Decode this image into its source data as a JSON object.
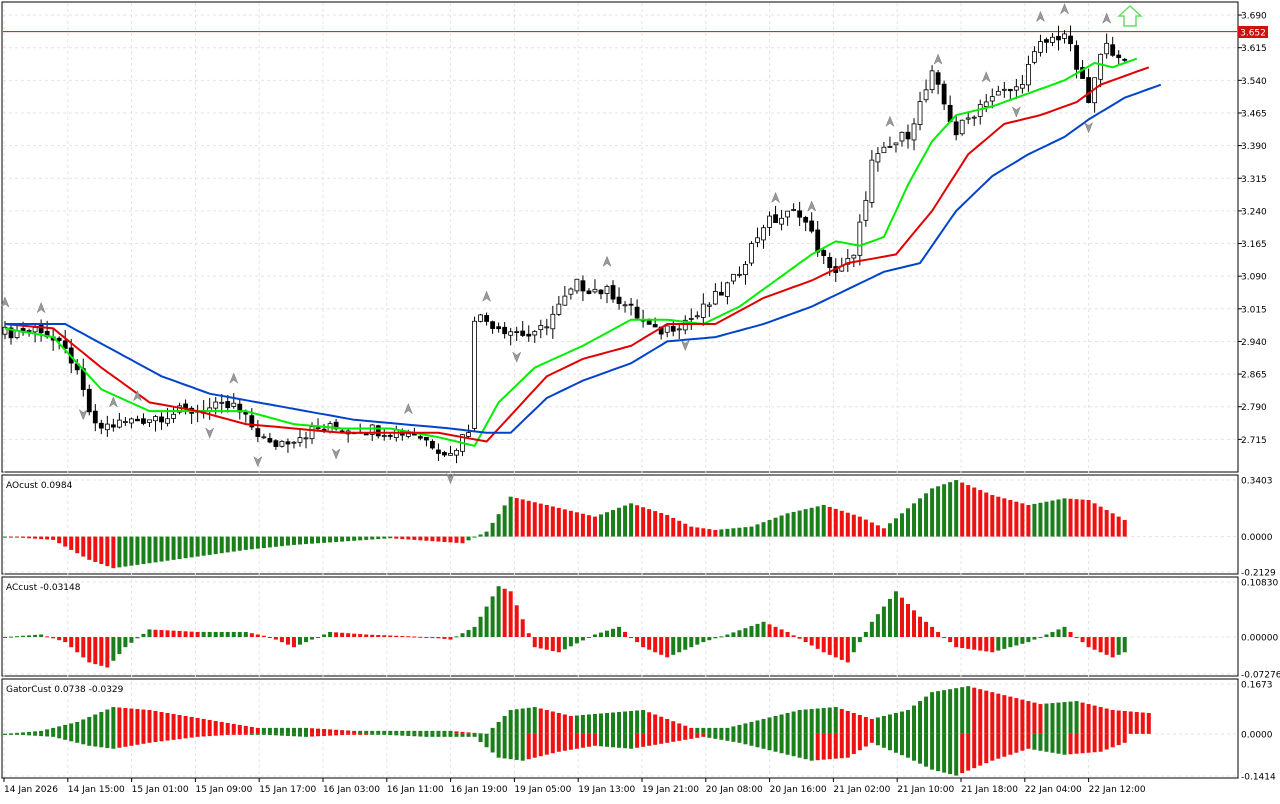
{
  "colors": {
    "background": "#ffffff",
    "grid": "#e4e4e4",
    "frame": "#000000",
    "bull_candle": "#ffffff",
    "bear_candle": "#000000",
    "ma_fast": "#00ee00",
    "ma_mid": "#e00000",
    "ma_slow": "#0044cc",
    "hist_up": "#1a7f1a",
    "hist_down": "#ee1111",
    "price_line": "#cc1111",
    "fractal": "#999999",
    "arrow": "#66dd66"
  },
  "main_chart": {
    "current_price_label": "3.652",
    "current_price": 3.652,
    "ylim": [
      2.64,
      3.72
    ],
    "y_ticks": [
      "3.690",
      "3.615",
      "3.540",
      "3.465",
      "3.390",
      "3.315",
      "3.240",
      "3.165",
      "3.090",
      "3.015",
      "2.940",
      "2.865",
      "2.790",
      "2.715"
    ]
  },
  "x_axis": {
    "labels": [
      "14 Jan 2026",
      "14 Jan 15:00",
      "15 Jan 01:00",
      "15 Jan 09:00",
      "15 Jan 17:00",
      "16 Jan 03:00",
      "16 Jan 11:00",
      "16 Jan 19:00",
      "19 Jan 05:00",
      "19 Jan 13:00",
      "19 Jan 21:00",
      "20 Jan 08:00",
      "20 Jan 16:00",
      "21 Jan 02:00",
      "21 Jan 10:00",
      "21 Jan 18:00",
      "22 Jan 04:00",
      "22 Jan 12:00"
    ]
  },
  "ao_panel": {
    "title": "AOcust 0.0984",
    "y_ticks": [
      "0.3403",
      "0.0000",
      "-0.2129"
    ],
    "ylim": [
      -0.2129,
      0.3403
    ]
  },
  "ac_panel": {
    "title": "ACcust -0.03148",
    "y_ticks": [
      "0.10830",
      "0.00000",
      "-0.07276"
    ],
    "ylim": [
      -0.07276,
      0.1083
    ]
  },
  "gator_panel": {
    "title": "GatorCust 0.0738 -0.0329",
    "y_ticks": [
      "0.1673",
      "0.0000",
      "-0.1414"
    ],
    "ylim": [
      -0.1414,
      0.1673
    ]
  },
  "chart_data": {
    "type": "candlestick",
    "price_anchors": [
      {
        "bar": 0,
        "close": 2.96
      },
      {
        "bar": 6,
        "close": 2.97
      },
      {
        "bar": 11,
        "close": 2.9
      },
      {
        "bar": 15,
        "close": 2.74
      },
      {
        "bar": 22,
        "close": 2.76
      },
      {
        "bar": 30,
        "close": 2.78
      },
      {
        "bar": 38,
        "close": 2.79
      },
      {
        "bar": 44,
        "close": 2.7
      },
      {
        "bar": 52,
        "close": 2.74
      },
      {
        "bar": 60,
        "close": 2.74
      },
      {
        "bar": 68,
        "close": 2.73
      },
      {
        "bar": 74,
        "close": 2.68
      },
      {
        "bar": 77,
        "close": 2.74
      },
      {
        "bar": 78,
        "close": 3.0
      },
      {
        "bar": 83,
        "close": 2.97
      },
      {
        "bar": 88,
        "close": 2.95
      },
      {
        "bar": 95,
        "close": 3.07
      },
      {
        "bar": 101,
        "close": 3.05
      },
      {
        "bar": 108,
        "close": 2.96
      },
      {
        "bar": 115,
        "close": 3.0
      },
      {
        "bar": 121,
        "close": 3.08
      },
      {
        "bar": 126,
        "close": 3.21
      },
      {
        "bar": 132,
        "close": 3.24
      },
      {
        "bar": 137,
        "close": 3.1
      },
      {
        "bar": 141,
        "close": 3.13
      },
      {
        "bar": 144,
        "close": 3.35
      },
      {
        "bar": 150,
        "close": 3.42
      },
      {
        "bar": 154,
        "close": 3.55
      },
      {
        "bar": 158,
        "close": 3.42
      },
      {
        "bar": 163,
        "close": 3.5
      },
      {
        "bar": 168,
        "close": 3.52
      },
      {
        "bar": 172,
        "close": 3.62
      },
      {
        "bar": 176,
        "close": 3.65
      },
      {
        "bar": 180,
        "close": 3.49
      },
      {
        "bar": 183,
        "close": 3.64
      },
      {
        "bar": 185,
        "close": 3.58
      }
    ],
    "ma_series": [
      {
        "period": "fast",
        "values": [
          [
            0,
            2.97
          ],
          [
            8,
            2.95
          ],
          [
            16,
            2.83
          ],
          [
            24,
            2.78
          ],
          [
            32,
            2.78
          ],
          [
            40,
            2.78
          ],
          [
            48,
            2.75
          ],
          [
            56,
            2.74
          ],
          [
            64,
            2.74
          ],
          [
            72,
            2.72
          ],
          [
            78,
            2.7
          ],
          [
            82,
            2.8
          ],
          [
            88,
            2.88
          ],
          [
            96,
            2.93
          ],
          [
            104,
            2.99
          ],
          [
            110,
            2.99
          ],
          [
            116,
            2.98
          ],
          [
            122,
            3.02
          ],
          [
            128,
            3.08
          ],
          [
            134,
            3.14
          ],
          [
            138,
            3.17
          ],
          [
            142,
            3.16
          ],
          [
            146,
            3.18
          ],
          [
            150,
            3.3
          ],
          [
            154,
            3.4
          ],
          [
            158,
            3.46
          ],
          [
            164,
            3.48
          ],
          [
            170,
            3.51
          ],
          [
            176,
            3.54
          ],
          [
            181,
            3.58
          ],
          [
            184,
            3.57
          ],
          [
            188,
            3.59
          ]
        ]
      },
      {
        "period": "mid",
        "values": [
          [
            0,
            2.98
          ],
          [
            8,
            2.97
          ],
          [
            16,
            2.88
          ],
          [
            24,
            2.8
          ],
          [
            32,
            2.78
          ],
          [
            40,
            2.75
          ],
          [
            48,
            2.74
          ],
          [
            56,
            2.73
          ],
          [
            64,
            2.73
          ],
          [
            72,
            2.73
          ],
          [
            80,
            2.71
          ],
          [
            84,
            2.77
          ],
          [
            90,
            2.86
          ],
          [
            96,
            2.9
          ],
          [
            104,
            2.93
          ],
          [
            110,
            2.98
          ],
          [
            118,
            2.98
          ],
          [
            126,
            3.04
          ],
          [
            134,
            3.08
          ],
          [
            140,
            3.12
          ],
          [
            144,
            3.13
          ],
          [
            148,
            3.14
          ],
          [
            154,
            3.24
          ],
          [
            160,
            3.37
          ],
          [
            166,
            3.44
          ],
          [
            172,
            3.46
          ],
          [
            178,
            3.49
          ],
          [
            182,
            3.53
          ],
          [
            186,
            3.55
          ],
          [
            190,
            3.57
          ]
        ]
      },
      {
        "period": "slow",
        "values": [
          [
            0,
            2.98
          ],
          [
            10,
            2.98
          ],
          [
            18,
            2.92
          ],
          [
            26,
            2.86
          ],
          [
            34,
            2.82
          ],
          [
            42,
            2.8
          ],
          [
            50,
            2.78
          ],
          [
            58,
            2.76
          ],
          [
            66,
            2.75
          ],
          [
            74,
            2.74
          ],
          [
            80,
            2.73
          ],
          [
            84,
            2.73
          ],
          [
            90,
            2.81
          ],
          [
            96,
            2.85
          ],
          [
            104,
            2.89
          ],
          [
            110,
            2.94
          ],
          [
            118,
            2.95
          ],
          [
            126,
            2.98
          ],
          [
            134,
            3.02
          ],
          [
            140,
            3.06
          ],
          [
            146,
            3.1
          ],
          [
            152,
            3.12
          ],
          [
            158,
            3.24
          ],
          [
            164,
            3.32
          ],
          [
            170,
            3.37
          ],
          [
            176,
            3.41
          ],
          [
            180,
            3.45
          ],
          [
            186,
            3.5
          ],
          [
            192,
            3.53
          ]
        ]
      }
    ],
    "ao_values": [
      [
        0,
        0.0
      ],
      [
        8,
        -0.02
      ],
      [
        14,
        -0.14
      ],
      [
        18,
        -0.19
      ],
      [
        24,
        -0.16
      ],
      [
        32,
        -0.12
      ],
      [
        40,
        -0.08
      ],
      [
        48,
        -0.05
      ],
      [
        56,
        -0.03
      ],
      [
        64,
        -0.01
      ],
      [
        72,
        -0.03
      ],
      [
        76,
        -0.04
      ],
      [
        80,
        0.03
      ],
      [
        84,
        0.24
      ],
      [
        90,
        0.19
      ],
      [
        98,
        0.12
      ],
      [
        104,
        0.2
      ],
      [
        110,
        0.13
      ],
      [
        114,
        0.06
      ],
      [
        118,
        0.04
      ],
      [
        124,
        0.06
      ],
      [
        130,
        0.14
      ],
      [
        136,
        0.19
      ],
      [
        142,
        0.12
      ],
      [
        146,
        0.05
      ],
      [
        150,
        0.17
      ],
      [
        154,
        0.29
      ],
      [
        158,
        0.34
      ],
      [
        164,
        0.25
      ],
      [
        170,
        0.19
      ],
      [
        176,
        0.23
      ],
      [
        180,
        0.22
      ],
      [
        186,
        0.1
      ]
    ],
    "ac_values": [
      [
        0,
        0.0
      ],
      [
        6,
        0.005
      ],
      [
        10,
        -0.01
      ],
      [
        14,
        -0.05
      ],
      [
        17,
        -0.06
      ],
      [
        20,
        -0.02
      ],
      [
        24,
        0.015
      ],
      [
        32,
        0.01
      ],
      [
        40,
        0.01
      ],
      [
        44,
        0.0
      ],
      [
        48,
        -0.02
      ],
      [
        54,
        0.01
      ],
      [
        60,
        0.005
      ],
      [
        70,
        0.0
      ],
      [
        74,
        -0.005
      ],
      [
        78,
        0.02
      ],
      [
        82,
        0.1
      ],
      [
        84,
        0.09
      ],
      [
        88,
        -0.02
      ],
      [
        92,
        -0.03
      ],
      [
        98,
        0.005
      ],
      [
        102,
        0.02
      ],
      [
        106,
        -0.02
      ],
      [
        110,
        -0.04
      ],
      [
        116,
        -0.01
      ],
      [
        120,
        0.005
      ],
      [
        126,
        0.03
      ],
      [
        130,
        0.01
      ],
      [
        136,
        -0.03
      ],
      [
        140,
        -0.05
      ],
      [
        144,
        0.03
      ],
      [
        148,
        0.09
      ],
      [
        152,
        0.04
      ],
      [
        158,
        -0.02
      ],
      [
        164,
        -0.03
      ],
      [
        170,
        -0.01
      ],
      [
        176,
        0.02
      ],
      [
        180,
        -0.02
      ],
      [
        184,
        -0.04
      ],
      [
        186,
        -0.03
      ]
    ],
    "gator_upper": [
      [
        0,
        0.0
      ],
      [
        6,
        0.01
      ],
      [
        12,
        0.04
      ],
      [
        18,
        0.09
      ],
      [
        24,
        0.08
      ],
      [
        30,
        0.06
      ],
      [
        36,
        0.04
      ],
      [
        42,
        0.02
      ],
      [
        50,
        0.02
      ],
      [
        58,
        0.01
      ],
      [
        66,
        0.01
      ],
      [
        74,
        0.01
      ],
      [
        80,
        0.0
      ],
      [
        84,
        0.08
      ],
      [
        88,
        0.09
      ],
      [
        94,
        0.06
      ],
      [
        100,
        0.07
      ],
      [
        106,
        0.08
      ],
      [
        110,
        0.05
      ],
      [
        114,
        0.02
      ],
      [
        120,
        0.02
      ],
      [
        126,
        0.05
      ],
      [
        132,
        0.08
      ],
      [
        138,
        0.09
      ],
      [
        144,
        0.05
      ],
      [
        150,
        0.08
      ],
      [
        154,
        0.14
      ],
      [
        160,
        0.16
      ],
      [
        166,
        0.13
      ],
      [
        172,
        0.1
      ],
      [
        178,
        0.11
      ],
      [
        184,
        0.08
      ],
      [
        190,
        0.07
      ]
    ],
    "gator_lower": [
      [
        0,
        0.0
      ],
      [
        8,
        -0.01
      ],
      [
        14,
        -0.04
      ],
      [
        18,
        -0.05
      ],
      [
        24,
        -0.03
      ],
      [
        32,
        -0.01
      ],
      [
        40,
        0.0
      ],
      [
        50,
        -0.01
      ],
      [
        60,
        0.0
      ],
      [
        70,
        -0.01
      ],
      [
        78,
        -0.01
      ],
      [
        82,
        -0.08
      ],
      [
        86,
        -0.09
      ],
      [
        92,
        -0.06
      ],
      [
        98,
        -0.04
      ],
      [
        104,
        -0.05
      ],
      [
        110,
        -0.03
      ],
      [
        116,
        -0.01
      ],
      [
        122,
        -0.03
      ],
      [
        128,
        -0.06
      ],
      [
        134,
        -0.09
      ],
      [
        140,
        -0.08
      ],
      [
        144,
        -0.03
      ],
      [
        150,
        -0.08
      ],
      [
        154,
        -0.12
      ],
      [
        158,
        -0.14
      ],
      [
        164,
        -0.09
      ],
      [
        170,
        -0.05
      ],
      [
        176,
        -0.07
      ],
      [
        182,
        -0.06
      ],
      [
        186,
        -0.03
      ]
    ]
  }
}
